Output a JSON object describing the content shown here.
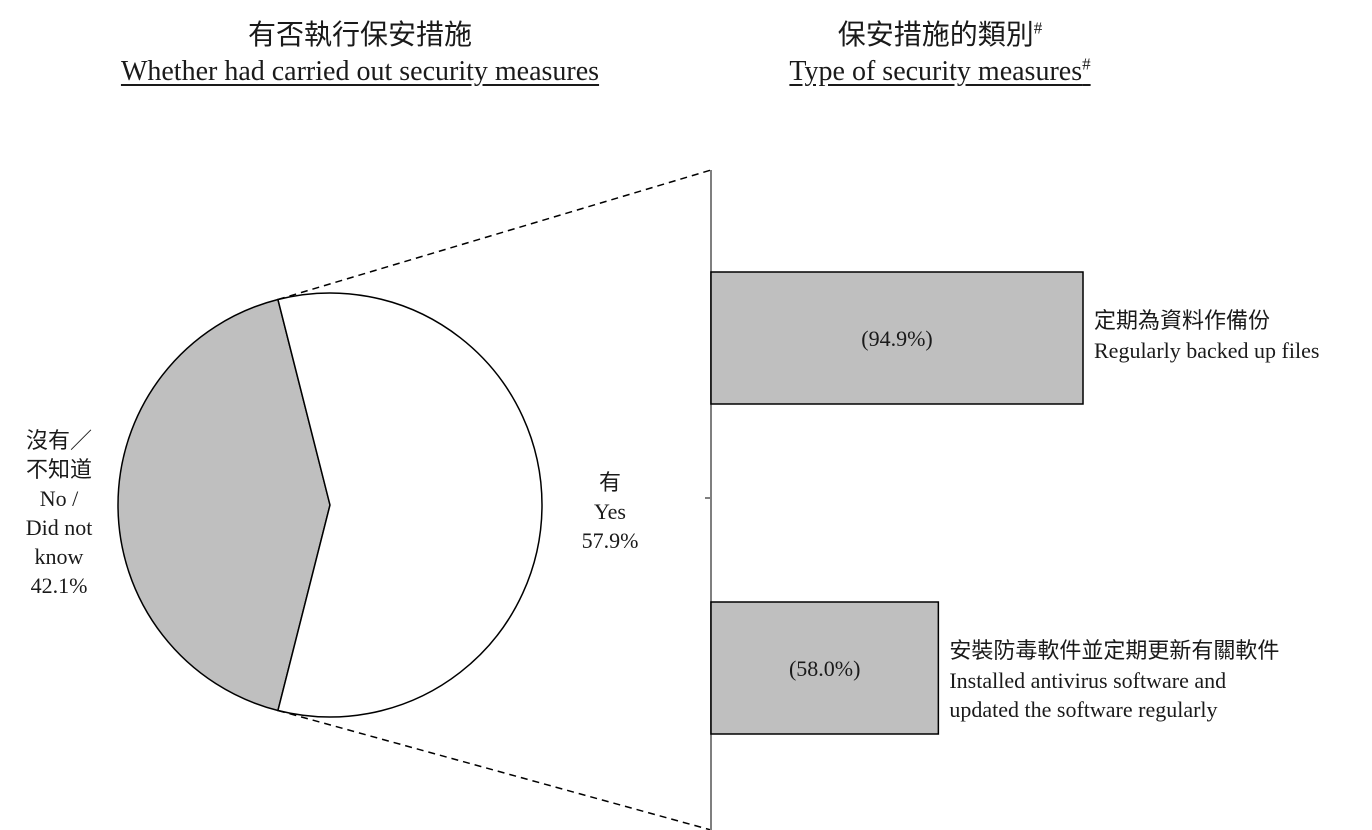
{
  "colors": {
    "no_slice": "#bfbfbf",
    "yes_slice": "#ffffff",
    "bars": "#bfbfbf",
    "stroke": "#000000",
    "axis": "#7f7f7f"
  },
  "left_title": {
    "zh": "有否執行保安措施",
    "en": "Whether had carried out security measures"
  },
  "right_title": {
    "zh": "保安措施的類別",
    "en": "Type of security measures",
    "note_mark": "#"
  },
  "chart_data": [
    {
      "type": "pie",
      "title": "Whether had carried out security measures",
      "slices": [
        {
          "label_lines": [
            "有",
            "Yes",
            "57.9%"
          ],
          "value": 57.9,
          "color": "#ffffff"
        },
        {
          "label_lines": [
            "沒有／",
            "不知道",
            "No /",
            "Did not",
            "know",
            "42.1%"
          ],
          "value": 42.1,
          "color": "#bfbfbf"
        }
      ]
    },
    {
      "type": "bar",
      "orientation": "horizontal",
      "title": "Type of security measures#",
      "xlim": [
        0,
        100
      ],
      "categories": [
        {
          "zh": "定期為資料作備份",
          "en_lines": [
            "Regularly backed up files"
          ]
        },
        {
          "zh": "安裝防毒軟件並定期更新有關軟件",
          "en_lines": [
            "Installed antivirus software and",
            "updated the software regularly"
          ]
        }
      ],
      "values": [
        94.9,
        58.0
      ],
      "data_labels": [
        "(94.9%)",
        "(58.0%)"
      ],
      "color": "#bfbfbf"
    }
  ]
}
